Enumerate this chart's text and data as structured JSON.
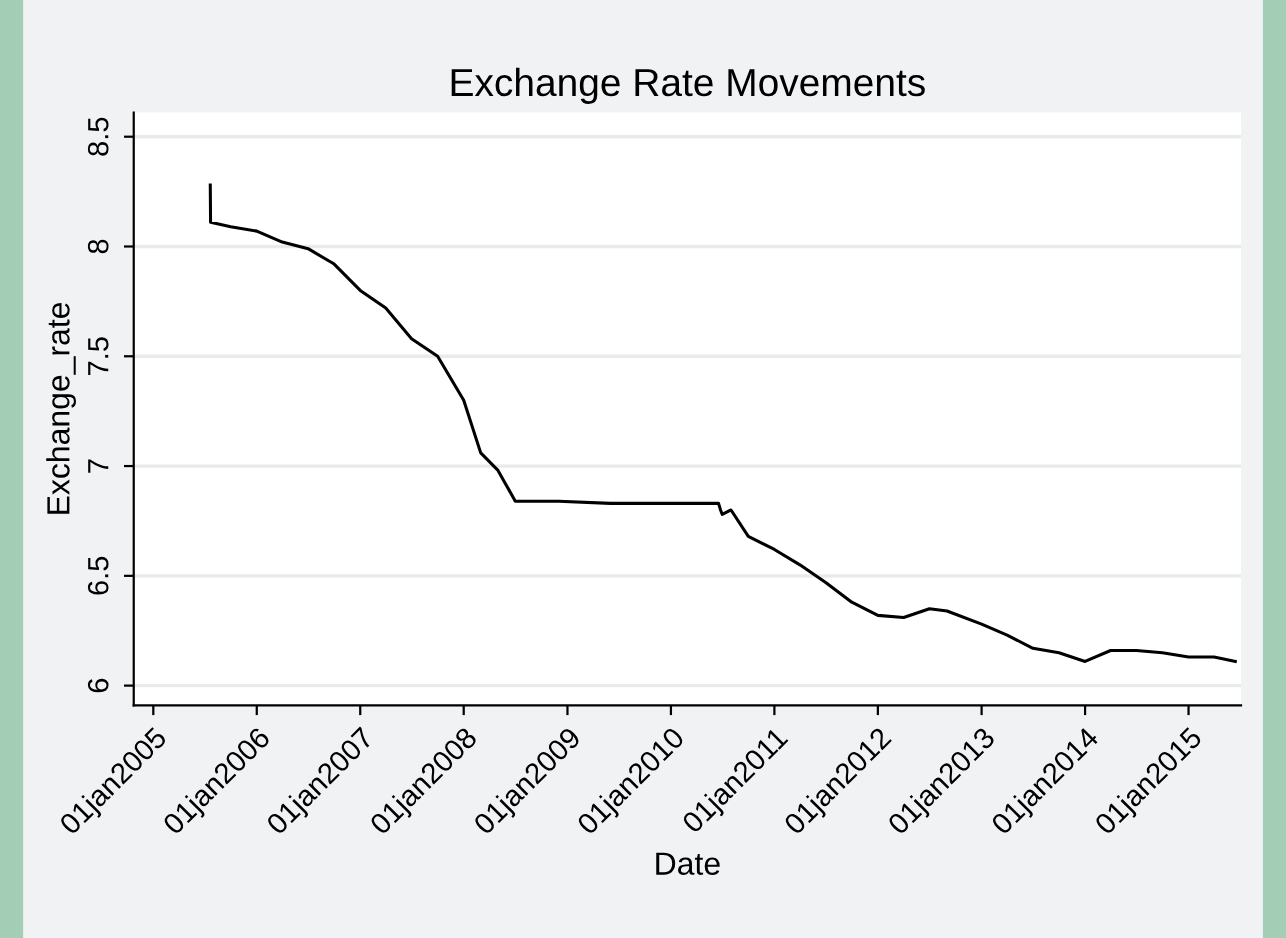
{
  "chart_data": {
    "type": "line",
    "title": "Exchange Rate Movements",
    "xlabel": "Date",
    "ylabel": "Exchange_rate",
    "x": [
      "2005-07-21",
      "2005-07-22",
      "2005-10-01",
      "2006-01-01",
      "2006-04-01",
      "2006-07-01",
      "2006-10-01",
      "2007-01-01",
      "2007-04-01",
      "2007-07-01",
      "2007-10-01",
      "2008-01-01",
      "2008-03-01",
      "2008-05-01",
      "2008-07-01",
      "2008-09-01",
      "2008-12-01",
      "2009-06-01",
      "2010-06-18",
      "2010-06-25",
      "2010-07-01",
      "2010-08-01",
      "2010-10-01",
      "2011-01-01",
      "2011-04-01",
      "2011-07-01",
      "2011-10-01",
      "2012-01-01",
      "2012-04-01",
      "2012-07-01",
      "2012-09-01",
      "2013-01-01",
      "2013-04-01",
      "2013-07-01",
      "2013-10-01",
      "2014-01-01",
      "2014-04-01",
      "2014-07-01",
      "2014-10-01",
      "2015-01-01",
      "2015-04-01",
      "2015-06-15"
    ],
    "series": [
      {
        "color": "#000000",
        "values": [
          8.28,
          8.11,
          8.09,
          8.07,
          8.02,
          7.99,
          7.92,
          7.8,
          7.72,
          7.58,
          7.5,
          7.3,
          7.06,
          6.98,
          6.84,
          6.84,
          6.84,
          6.83,
          6.83,
          6.8,
          6.78,
          6.8,
          6.68,
          6.62,
          6.55,
          6.47,
          6.38,
          6.32,
          6.31,
          6.35,
          6.34,
          6.28,
          6.23,
          6.17,
          6.15,
          6.11,
          6.16,
          6.16,
          6.15,
          6.13,
          6.13,
          6.11
        ]
      }
    ],
    "xlim": [
      "2004-10-24",
      "2015-07-05"
    ],
    "xticks": [
      {
        "value": "2005-01-01",
        "label": "01jan2005"
      },
      {
        "value": "2006-01-01",
        "label": "01jan2006"
      },
      {
        "value": "2007-01-01",
        "label": "01jan2007"
      },
      {
        "value": "2008-01-01",
        "label": "01jan2008"
      },
      {
        "value": "2009-01-01",
        "label": "01jan2009"
      },
      {
        "value": "2010-01-01",
        "label": "01jan2010"
      },
      {
        "value": "2011-01-01",
        "label": "01jan2011"
      },
      {
        "value": "2012-01-01",
        "label": "01jan2012"
      },
      {
        "value": "2013-01-01",
        "label": "01jan2013"
      },
      {
        "value": "2014-01-01",
        "label": "01jan2014"
      },
      {
        "value": "2015-01-01",
        "label": "01jan2015"
      }
    ],
    "ylim": [
      5.91,
      8.61
    ],
    "yticks": [
      6,
      6.5,
      7,
      7.5,
      8,
      8.5
    ],
    "grid": "y",
    "marker": "none",
    "line_style": "solid"
  }
}
